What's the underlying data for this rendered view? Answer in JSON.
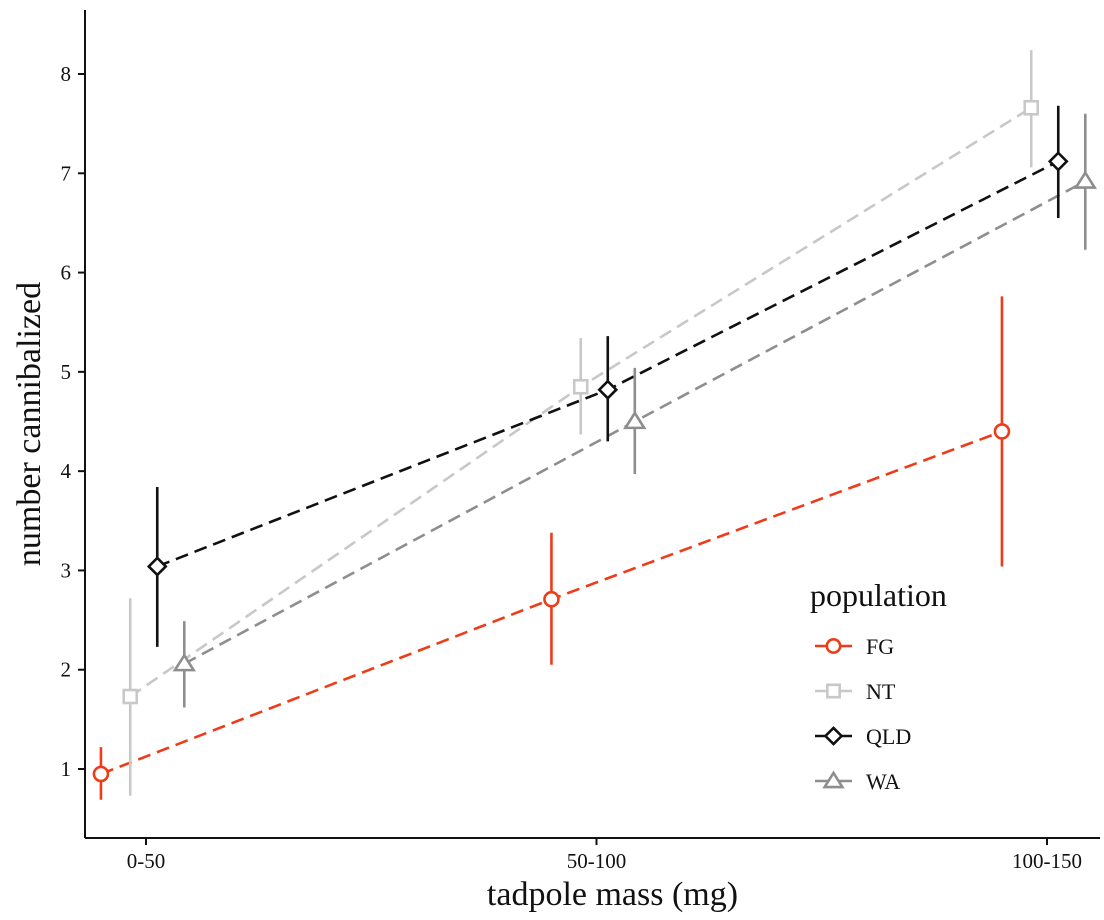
{
  "chart_data": {
    "type": "line",
    "title": "",
    "xlabel": "tadpole mass (mg)",
    "ylabel": "number cannibalized",
    "categories": [
      "0-50",
      "50-100",
      "100-150"
    ],
    "ylim": [
      0.4,
      8.6
    ],
    "yticks": [
      1,
      2,
      3,
      4,
      5,
      6,
      7,
      8
    ],
    "grid": false,
    "legend": {
      "title": "population",
      "position": "bottom-right"
    },
    "error_bars": true,
    "series": [
      {
        "name": "FG",
        "color": "#ee3c1a",
        "marker": "circle",
        "dodge": -0.1,
        "values": [
          0.95,
          2.71,
          4.4
        ],
        "lower": [
          0.69,
          2.05,
          3.04
        ],
        "upper": [
          1.22,
          3.38,
          5.76
        ]
      },
      {
        "name": "NT",
        "color": "#c8c8c8",
        "marker": "square",
        "dodge": -0.035,
        "values": [
          1.73,
          4.85,
          7.66
        ],
        "lower": [
          0.73,
          4.37,
          7.06
        ],
        "upper": [
          2.72,
          5.34,
          8.24
        ]
      },
      {
        "name": "QLD",
        "color": "#111111",
        "marker": "diamond",
        "dodge": 0.025,
        "values": [
          3.04,
          4.82,
          7.12
        ],
        "lower": [
          2.23,
          4.3,
          6.55
        ],
        "upper": [
          3.84,
          5.36,
          7.68
        ]
      },
      {
        "name": "WA",
        "color": "#8e8e8e",
        "marker": "triangle",
        "dodge": 0.085,
        "values": [
          2.06,
          4.5,
          6.92
        ],
        "lower": [
          1.62,
          3.97,
          6.23
        ],
        "upper": [
          2.49,
          5.04,
          7.6
        ]
      }
    ]
  }
}
